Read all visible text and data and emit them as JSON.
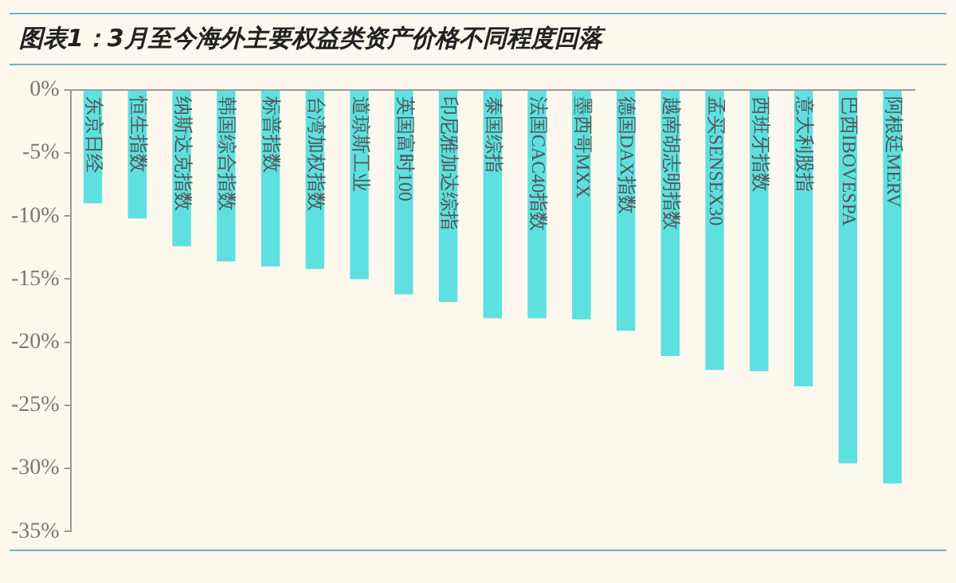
{
  "chart_data": {
    "type": "bar",
    "title": "图表1：3月至今海外主要权益类资产价格不同程度回落",
    "categories": [
      "东京日经",
      "恒生指数",
      "纳斯达克指数",
      "韩国综合指数",
      "标普指数",
      "台湾加权指数",
      "道琼斯工业",
      "英国富时100",
      "印尼雅加达综指",
      "泰国综指",
      "法国CAC40指数",
      "墨西哥MXX",
      "德国DAX指数",
      "越南胡志明指数",
      "孟买SENSEX30",
      "西班牙指数",
      "意大利股指",
      "巴西IBOVESPA",
      "阿根廷MERV"
    ],
    "values": [
      -9.0,
      -10.2,
      -12.4,
      -13.6,
      -14.0,
      -14.2,
      -15.0,
      -16.2,
      -16.8,
      -18.1,
      -18.1,
      -18.2,
      -19.1,
      -21.1,
      -22.2,
      -22.3,
      -23.5,
      -29.6,
      -31.2
    ],
    "color": "#5ee0e0",
    "ylim": [
      -35,
      0
    ],
    "yticks": [
      {
        "value": 0,
        "label": "0%"
      },
      {
        "value": -5,
        "label": "-5%"
      },
      {
        "value": -10,
        "label": "-10%"
      },
      {
        "value": -15,
        "label": "-15%"
      },
      {
        "value": -20,
        "label": "-20%"
      },
      {
        "value": -25,
        "label": "-25%"
      },
      {
        "value": -30,
        "label": "-30%"
      },
      {
        "value": -35,
        "label": "-35%"
      }
    ],
    "grid": false,
    "legend": false
  }
}
